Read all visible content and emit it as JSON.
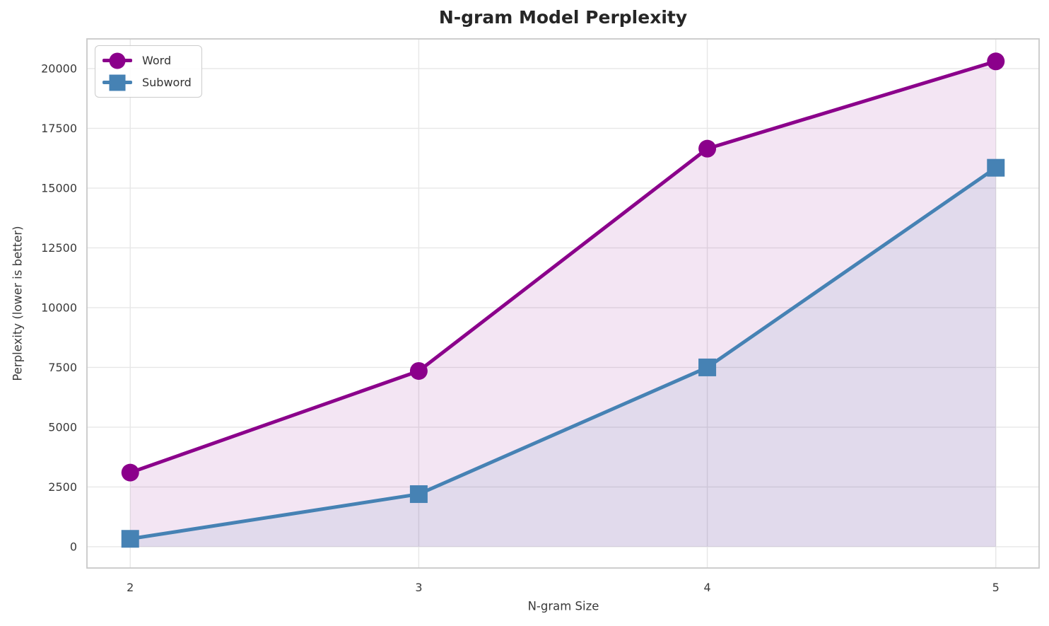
{
  "chart_data": {
    "type": "line",
    "title": "N-gram Model Perplexity",
    "xlabel": "N-gram Size",
    "ylabel": "Perplexity (lower is better)",
    "x": [
      2,
      3,
      4,
      5
    ],
    "series": [
      {
        "name": "Word",
        "marker": "circle",
        "color": "#8B008B",
        "values": [
          3100,
          7350,
          16650,
          20300
        ]
      },
      {
        "name": "Subword",
        "marker": "square",
        "color": "#4682B4",
        "values": [
          330,
          2200,
          7500,
          15850
        ]
      }
    ],
    "fill_to_zero": true,
    "fill_alpha": 0.1,
    "xticks": [
      2,
      3,
      4,
      5
    ],
    "yticks": [
      0,
      2500,
      5000,
      7500,
      10000,
      12500,
      15000,
      17500,
      20000
    ],
    "xlim": [
      1.85,
      5.15
    ],
    "ylim": [
      -890,
      21240
    ],
    "grid": true,
    "legend_position": "upper left",
    "colors": {
      "grid": "#e7e7e7",
      "spine": "#c9c9c9",
      "tick_text": "#3a3a3a",
      "title_text": "#262626",
      "background": "#ffffff"
    }
  }
}
